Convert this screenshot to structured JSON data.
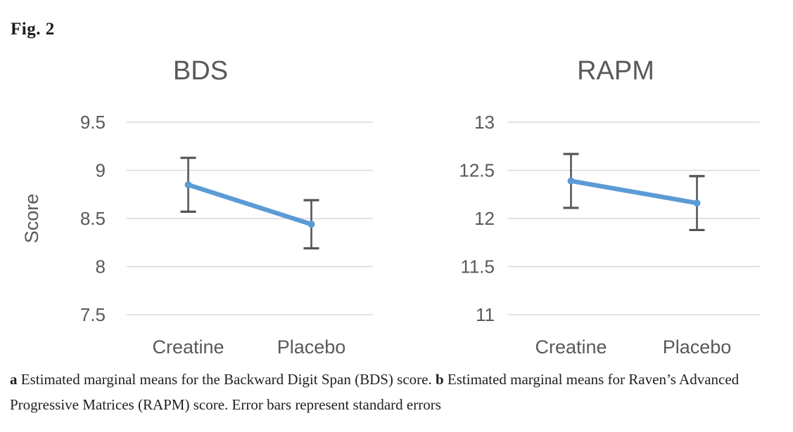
{
  "figure": {
    "label": "Fig. 2"
  },
  "caption": {
    "part_a_label": "a",
    "part_a_text": " Estimated marginal means for the Backward Digit Span (BDS) score. ",
    "part_b_label": "b",
    "part_b_text": " Estimated marginal means for Raven’s Advanced Progressive Matrices (RAPM) score. Error bars represent standard errors"
  },
  "colors": {
    "line": "#5B9BD5",
    "marker": "#5B9BD5",
    "error_bar": "#555555",
    "gridline": "#D9D9D9",
    "chart_text": "#595959"
  },
  "chart_data": [
    {
      "type": "line",
      "title": "BDS",
      "ylabel": "Score",
      "xlabel": "",
      "categories": [
        "Creatine",
        "Placebo"
      ],
      "series": [
        {
          "name": "Estimated marginal mean",
          "values": [
            8.85,
            8.44
          ],
          "error_upper": [
            9.13,
            8.69
          ],
          "error_lower": [
            8.57,
            8.19
          ]
        }
      ],
      "ylim": [
        7.5,
        9.5
      ],
      "yticks": [
        9.5,
        9,
        8.5,
        8,
        7.5
      ],
      "grid": true,
      "legend": false
    },
    {
      "type": "line",
      "title": "RAPM",
      "ylabel": "",
      "xlabel": "",
      "categories": [
        "Creatine",
        "Placebo"
      ],
      "series": [
        {
          "name": "Estimated marginal mean",
          "values": [
            12.39,
            12.16
          ],
          "error_upper": [
            12.67,
            12.44
          ],
          "error_lower": [
            12.11,
            11.88
          ]
        }
      ],
      "ylim": [
        11,
        13
      ],
      "yticks": [
        13,
        12.5,
        12,
        11.5,
        11
      ],
      "grid": true,
      "legend": false
    }
  ]
}
